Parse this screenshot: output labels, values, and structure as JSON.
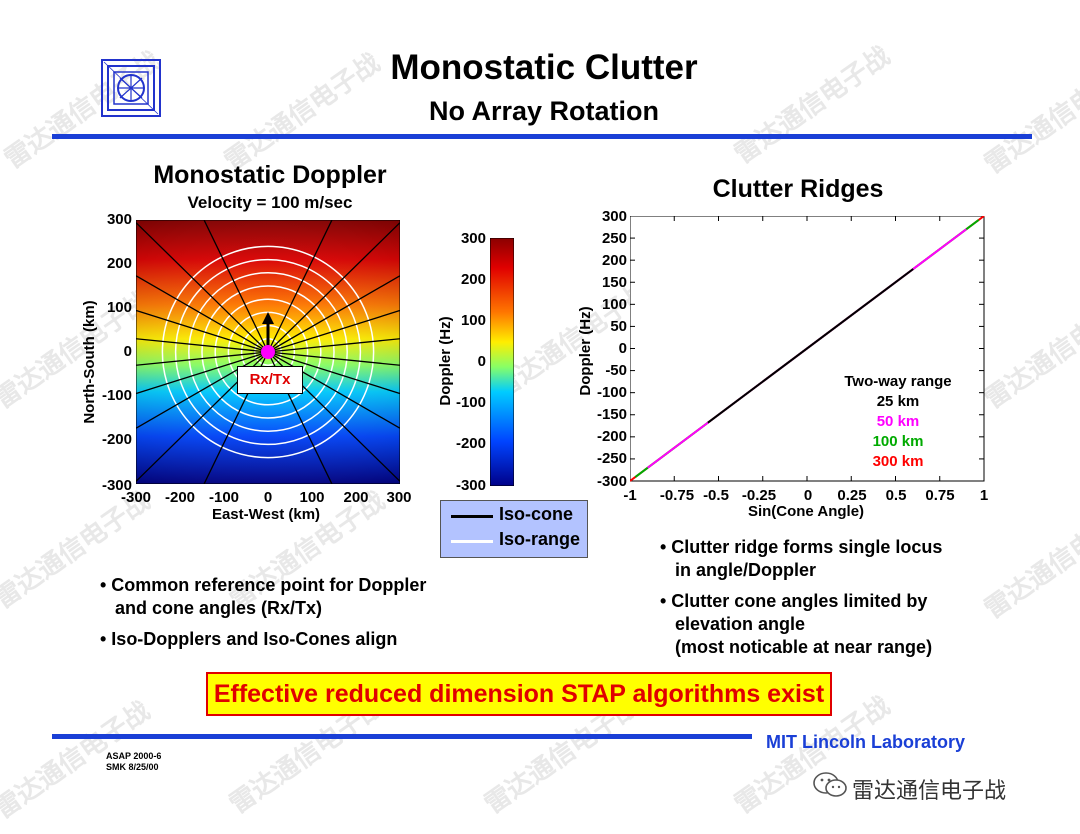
{
  "slide": {
    "title": "Monostatic Clutter",
    "subtitle": "No Array Rotation",
    "banner": "Effective reduced dimension STAP algorithms exist",
    "lab": "MIT Lincoln Laboratory",
    "footer_line1": "ASAP 2000-6",
    "footer_line2": "SMK 8/25/00",
    "watermark": "雷达通信电子战"
  },
  "left_panel": {
    "title": "Monostatic Doppler",
    "subtitle": "Velocity = 100 m/sec",
    "marker_label": "Rx/Tx",
    "bullets": [
      "• Common reference point for Doppler",
      "   and cone angles (Rx/Tx)",
      "• Iso-Dopplers and Iso-Cones align"
    ]
  },
  "colorbar": {
    "label": "Doppler (Hz)",
    "ticks": [
      "300",
      "200",
      "100",
      "0",
      "-100",
      "-200",
      "-300"
    ]
  },
  "legend": {
    "items": [
      {
        "label": "Iso-cone",
        "color": "#000000"
      },
      {
        "label": "Iso-range",
        "color": "#ffffff"
      }
    ]
  },
  "right_panel": {
    "title": "Clutter Ridges",
    "legend_title": "Two-way range",
    "bullets": [
      "• Clutter ridge forms single locus",
      "   in angle/Doppler",
      "• Clutter cone angles limited by",
      "   elevation angle",
      "   (most noticable at near range)"
    ]
  },
  "chart_data": [
    {
      "type": "heatmap",
      "title": "Monostatic Doppler",
      "subtitle": "Velocity = 100 m/sec",
      "xlabel": "East-West (km)",
      "ylabel": "North-South (km)",
      "xlim": [
        -300,
        300
      ],
      "ylim": [
        -300,
        300
      ],
      "x_ticks": [
        "-300",
        "-200",
        "-100",
        "0",
        "100",
        "200",
        "300"
      ],
      "y_ticks": [
        "300",
        "200",
        "100",
        "0",
        "-100",
        "-200",
        "-300"
      ],
      "colorbar": {
        "label": "Doppler (Hz)",
        "range": [
          -300,
          300
        ]
      },
      "iso_range_km": [
        50,
        100,
        150,
        200,
        250,
        300,
        350,
        400
      ],
      "iso_cone_sin": [
        -0.9,
        -0.7,
        -0.5,
        -0.3,
        -0.1,
        0.1,
        0.3,
        0.5,
        0.7,
        0.9
      ],
      "colors": {
        "iso_cone": "#000000",
        "iso_range": "#ffffff",
        "marker": "#ff00ff"
      }
    },
    {
      "type": "line",
      "title": "Clutter Ridges",
      "xlabel": "Sin(Cone Angle)",
      "ylabel": "Doppler (Hz)",
      "xlim": [
        -1,
        1
      ],
      "ylim": [
        -300,
        300
      ],
      "x_ticks": [
        "-1",
        "-0.75",
        "-0.5",
        "-0.25",
        "0",
        "0.25",
        "0.5",
        "0.75",
        "1"
      ],
      "y_ticks": [
        "300",
        "250",
        "200",
        "150",
        "100",
        "50",
        "0",
        "-50",
        "-100",
        "-150",
        "-200",
        "-250",
        "-300"
      ],
      "legend_title": "Two-way range",
      "series": [
        {
          "name": "25 km",
          "color": "#000000",
          "x": [
            -0.56,
            0.6
          ],
          "y": [
            -168,
            180
          ]
        },
        {
          "name": "50 km",
          "color": "#ff00ff",
          "x": [
            -0.9,
            0.9
          ],
          "y": [
            -270,
            270
          ]
        },
        {
          "name": "100 km",
          "color": "#00aa00",
          "x": [
            -0.97,
            0.97
          ],
          "y": [
            -291,
            291
          ]
        },
        {
          "name": "300 km",
          "color": "#ff0000",
          "x": [
            -1,
            1
          ],
          "y": [
            -300,
            300
          ]
        }
      ]
    }
  ]
}
